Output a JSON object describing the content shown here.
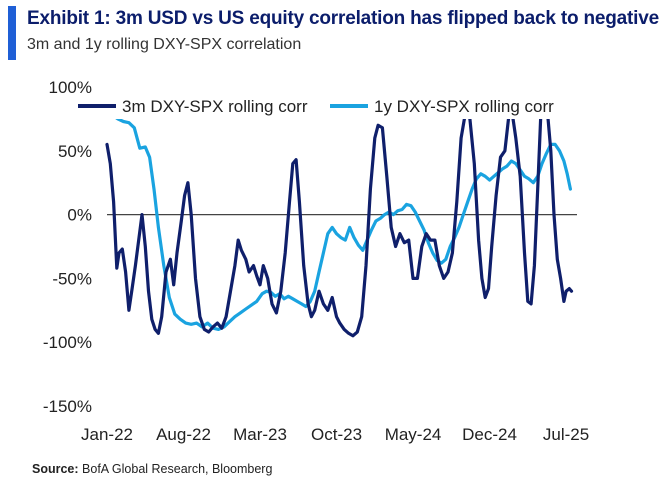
{
  "header": {
    "title": "Exhibit 1: 3m USD vs US equity correlation has flipped back to negative",
    "subtitle": "3m and 1y rolling DXY-SPX correlation"
  },
  "footer": {
    "source_label": "Source:",
    "source_text": "BofA Global Research, Bloomberg"
  },
  "colors": {
    "accent": "#1f5fd6",
    "title": "#0b1d6b",
    "series_3m": "#0f1f6b",
    "series_1y": "#1aa3e0",
    "zero_line": "#444444"
  },
  "chart_data": {
    "type": "line",
    "title": "",
    "xlabel": "",
    "ylabel": "",
    "ylim": [
      -150,
      100
    ],
    "yticks": [
      100,
      50,
      0,
      -50,
      -100,
      -150
    ],
    "ytick_labels": [
      "100%",
      "50%",
      "0%",
      "-50%",
      "-100%",
      "-150%"
    ],
    "xlim": [
      0,
      43
    ],
    "xticks": [
      0,
      7,
      14,
      21,
      28,
      35,
      42
    ],
    "xtick_labels": [
      "Jan-22",
      "Aug-22",
      "Mar-23",
      "Oct-23",
      "May-24",
      "Dec-24",
      "Jul-25"
    ],
    "legend_position": "top",
    "zero_line": true,
    "grid": false,
    "series": [
      {
        "name": "3m DXY-SPX rolling corr",
        "color": "#0f1f6b",
        "points": [
          [
            0,
            55
          ],
          [
            0.3,
            40
          ],
          [
            0.6,
            10
          ],
          [
            0.9,
            -42
          ],
          [
            1.1,
            -30
          ],
          [
            1.4,
            -27
          ],
          [
            1.7,
            -45
          ],
          [
            2.0,
            -75
          ],
          [
            2.3,
            -58
          ],
          [
            2.6,
            -40
          ],
          [
            2.9,
            -20
          ],
          [
            3.2,
            0
          ],
          [
            3.5,
            -25
          ],
          [
            3.8,
            -60
          ],
          [
            4.1,
            -82
          ],
          [
            4.4,
            -90
          ],
          [
            4.7,
            -93
          ],
          [
            5.0,
            -80
          ],
          [
            5.4,
            -45
          ],
          [
            5.8,
            -35
          ],
          [
            6.1,
            -55
          ],
          [
            6.4,
            -30
          ],
          [
            6.8,
            -5
          ],
          [
            7.1,
            15
          ],
          [
            7.4,
            25
          ],
          [
            7.7,
            0
          ],
          [
            8.1,
            -50
          ],
          [
            8.5,
            -80
          ],
          [
            8.9,
            -90
          ],
          [
            9.3,
            -92
          ],
          [
            9.7,
            -88
          ],
          [
            10.1,
            -85
          ],
          [
            10.5,
            -89
          ],
          [
            10.9,
            -80
          ],
          [
            11.3,
            -60
          ],
          [
            11.7,
            -40
          ],
          [
            12.0,
            -20
          ],
          [
            12.3,
            -28
          ],
          [
            12.7,
            -35
          ],
          [
            13.0,
            -45
          ],
          [
            13.4,
            -40
          ],
          [
            13.7,
            -48
          ],
          [
            14.0,
            -55
          ],
          [
            14.3,
            -40
          ],
          [
            14.7,
            -50
          ],
          [
            15.1,
            -70
          ],
          [
            15.5,
            -77
          ],
          [
            15.9,
            -60
          ],
          [
            16.3,
            -30
          ],
          [
            16.7,
            10
          ],
          [
            17.0,
            40
          ],
          [
            17.3,
            43
          ],
          [
            17.6,
            10
          ],
          [
            18.0,
            -40
          ],
          [
            18.4,
            -70
          ],
          [
            18.7,
            -80
          ],
          [
            19.0,
            -75
          ],
          [
            19.4,
            -60
          ],
          [
            19.8,
            -70
          ],
          [
            20.2,
            -75
          ],
          [
            20.6,
            -65
          ],
          [
            21.0,
            -80
          ],
          [
            21.3,
            -85
          ],
          [
            21.7,
            -90
          ],
          [
            22.1,
            -93
          ],
          [
            22.5,
            -95
          ],
          [
            22.9,
            -92
          ],
          [
            23.3,
            -80
          ],
          [
            23.7,
            -40
          ],
          [
            24.1,
            20
          ],
          [
            24.5,
            60
          ],
          [
            24.8,
            70
          ],
          [
            25.2,
            68
          ],
          [
            25.6,
            30
          ],
          [
            26.0,
            -10
          ],
          [
            26.4,
            -25
          ],
          [
            26.8,
            -15
          ],
          [
            27.2,
            -22
          ],
          [
            27.6,
            -20
          ],
          [
            28.0,
            -50
          ],
          [
            28.4,
            -50
          ],
          [
            28.8,
            -25
          ],
          [
            29.2,
            -15
          ],
          [
            29.6,
            -20
          ],
          [
            30.0,
            -20
          ],
          [
            30.4,
            -40
          ],
          [
            30.8,
            -50
          ],
          [
            31.2,
            -45
          ],
          [
            31.6,
            -30
          ],
          [
            32.0,
            10
          ],
          [
            32.4,
            60
          ],
          [
            32.8,
            80
          ],
          [
            33.2,
            75
          ],
          [
            33.6,
            40
          ],
          [
            34.0,
            -20
          ],
          [
            34.3,
            -50
          ],
          [
            34.6,
            -65
          ],
          [
            34.9,
            -58
          ],
          [
            35.2,
            -25
          ],
          [
            35.6,
            15
          ],
          [
            36.0,
            45
          ],
          [
            36.4,
            50
          ],
          [
            36.8,
            80
          ],
          [
            37.1,
            78
          ],
          [
            37.4,
            60
          ],
          [
            37.8,
            30
          ],
          [
            38.2,
            -30
          ],
          [
            38.5,
            -68
          ],
          [
            38.8,
            -70
          ],
          [
            39.1,
            -40
          ],
          [
            39.4,
            20
          ],
          [
            39.7,
            80
          ],
          [
            40.0,
            88
          ],
          [
            40.3,
            80
          ],
          [
            40.6,
            50
          ],
          [
            40.9,
            0
          ],
          [
            41.2,
            -35
          ],
          [
            41.5,
            -50
          ],
          [
            41.8,
            -68
          ],
          [
            42.0,
            -60
          ],
          [
            42.3,
            -58
          ],
          [
            42.5,
            -60
          ]
        ]
      },
      {
        "name": "1y DXY-SPX rolling corr",
        "color": "#1aa3e0",
        "points": [
          [
            0,
            80
          ],
          [
            0.5,
            78
          ],
          [
            1.0,
            75
          ],
          [
            1.5,
            73
          ],
          [
            2.0,
            72
          ],
          [
            2.5,
            68
          ],
          [
            3.0,
            52
          ],
          [
            3.5,
            53
          ],
          [
            3.9,
            45
          ],
          [
            4.3,
            20
          ],
          [
            4.7,
            -10
          ],
          [
            5.2,
            -40
          ],
          [
            5.7,
            -65
          ],
          [
            6.2,
            -78
          ],
          [
            6.7,
            -82
          ],
          [
            7.2,
            -85
          ],
          [
            7.7,
            -86
          ],
          [
            8.2,
            -85
          ],
          [
            8.7,
            -88
          ],
          [
            9.2,
            -85
          ],
          [
            9.7,
            -89
          ],
          [
            10.2,
            -90
          ],
          [
            10.7,
            -88
          ],
          [
            11.2,
            -84
          ],
          [
            11.7,
            -80
          ],
          [
            12.2,
            -77
          ],
          [
            12.7,
            -74
          ],
          [
            13.2,
            -71
          ],
          [
            13.7,
            -68
          ],
          [
            14.2,
            -62
          ],
          [
            14.6,
            -60
          ],
          [
            15.0,
            -61
          ],
          [
            15.4,
            -64
          ],
          [
            15.8,
            -62
          ],
          [
            16.2,
            -66
          ],
          [
            16.6,
            -64
          ],
          [
            17.0,
            -66
          ],
          [
            17.4,
            -68
          ],
          [
            17.8,
            -70
          ],
          [
            18.2,
            -72
          ],
          [
            18.6,
            -68
          ],
          [
            19.0,
            -60
          ],
          [
            19.4,
            -45
          ],
          [
            19.8,
            -30
          ],
          [
            20.2,
            -15
          ],
          [
            20.6,
            -10
          ],
          [
            21.0,
            -15
          ],
          [
            21.4,
            -18
          ],
          [
            21.8,
            -20
          ],
          [
            22.2,
            -10
          ],
          [
            22.6,
            -18
          ],
          [
            23.0,
            -24
          ],
          [
            23.4,
            -28
          ],
          [
            23.8,
            -20
          ],
          [
            24.2,
            -12
          ],
          [
            24.6,
            -5
          ],
          [
            25.0,
            -3
          ],
          [
            25.4,
            0
          ],
          [
            25.8,
            2
          ],
          [
            26.2,
            0
          ],
          [
            26.6,
            3
          ],
          [
            27.0,
            4
          ],
          [
            27.4,
            8
          ],
          [
            27.8,
            7
          ],
          [
            28.2,
            2
          ],
          [
            28.6,
            -5
          ],
          [
            29.0,
            -12
          ],
          [
            29.4,
            -22
          ],
          [
            29.8,
            -30
          ],
          [
            30.2,
            -36
          ],
          [
            30.6,
            -38
          ],
          [
            31.0,
            -35
          ],
          [
            31.4,
            -25
          ],
          [
            31.8,
            -18
          ],
          [
            32.2,
            -10
          ],
          [
            32.6,
            0
          ],
          [
            33.0,
            10
          ],
          [
            33.4,
            20
          ],
          [
            33.8,
            28
          ],
          [
            34.2,
            32
          ],
          [
            34.6,
            30
          ],
          [
            35.0,
            27
          ],
          [
            35.4,
            30
          ],
          [
            35.8,
            33
          ],
          [
            36.2,
            36
          ],
          [
            36.6,
            38
          ],
          [
            37.0,
            42
          ],
          [
            37.4,
            40
          ],
          [
            37.8,
            35
          ],
          [
            38.2,
            30
          ],
          [
            38.6,
            28
          ],
          [
            39.0,
            25
          ],
          [
            39.4,
            30
          ],
          [
            39.8,
            40
          ],
          [
            40.2,
            48
          ],
          [
            40.6,
            55
          ],
          [
            41.0,
            55
          ],
          [
            41.4,
            50
          ],
          [
            41.8,
            42
          ],
          [
            42.1,
            32
          ],
          [
            42.4,
            20
          ]
        ]
      }
    ]
  }
}
